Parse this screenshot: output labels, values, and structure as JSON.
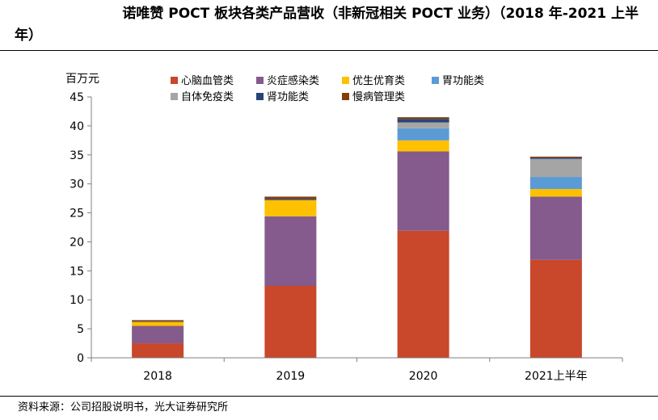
{
  "title": {
    "line1": "诺唯赞 POCT 板块各类产品营收（非新冠相关 POCT 业务）（2018 年-2021 上半",
    "line2": "年）"
  },
  "source": "资料来源：公司招股说明书，光大证券研究所",
  "chart_data": {
    "type": "bar",
    "stacked": true,
    "title": "诺唯赞 POCT 板块各类产品营收（非新冠相关 POCT 业务）（2018 年-2021 上半年）",
    "ylabel": "百万元",
    "xlabel": "",
    "ylim": [
      0,
      45
    ],
    "yticks": [
      0,
      5,
      10,
      15,
      20,
      25,
      30,
      35,
      40,
      45
    ],
    "categories": [
      "2018",
      "2019",
      "2020",
      "2021上半年"
    ],
    "legend_position": "top",
    "grid": false,
    "series": [
      {
        "name": "心脑血管类",
        "color": "#C9472A",
        "values": [
          2.5,
          12.4,
          21.9,
          16.9
        ]
      },
      {
        "name": "炎症感染类",
        "color": "#855A8C",
        "values": [
          3.0,
          12.0,
          13.7,
          10.9
        ]
      },
      {
        "name": "优生优育类",
        "color": "#FFC000",
        "values": [
          0.7,
          2.8,
          1.9,
          1.3
        ]
      },
      {
        "name": "胃功能类",
        "color": "#5B9BD5",
        "values": [
          0.0,
          0.0,
          2.1,
          2.1
        ]
      },
      {
        "name": "自体免疫类",
        "color": "#A5A5A5",
        "values": [
          0.0,
          0.0,
          1.0,
          3.1
        ]
      },
      {
        "name": "肾功能类",
        "color": "#264478",
        "values": [
          0.1,
          0.2,
          0.6,
          0.2
        ]
      },
      {
        "name": "慢病管理类",
        "color": "#843C0C",
        "values": [
          0.2,
          0.4,
          0.3,
          0.2
        ]
      }
    ]
  }
}
